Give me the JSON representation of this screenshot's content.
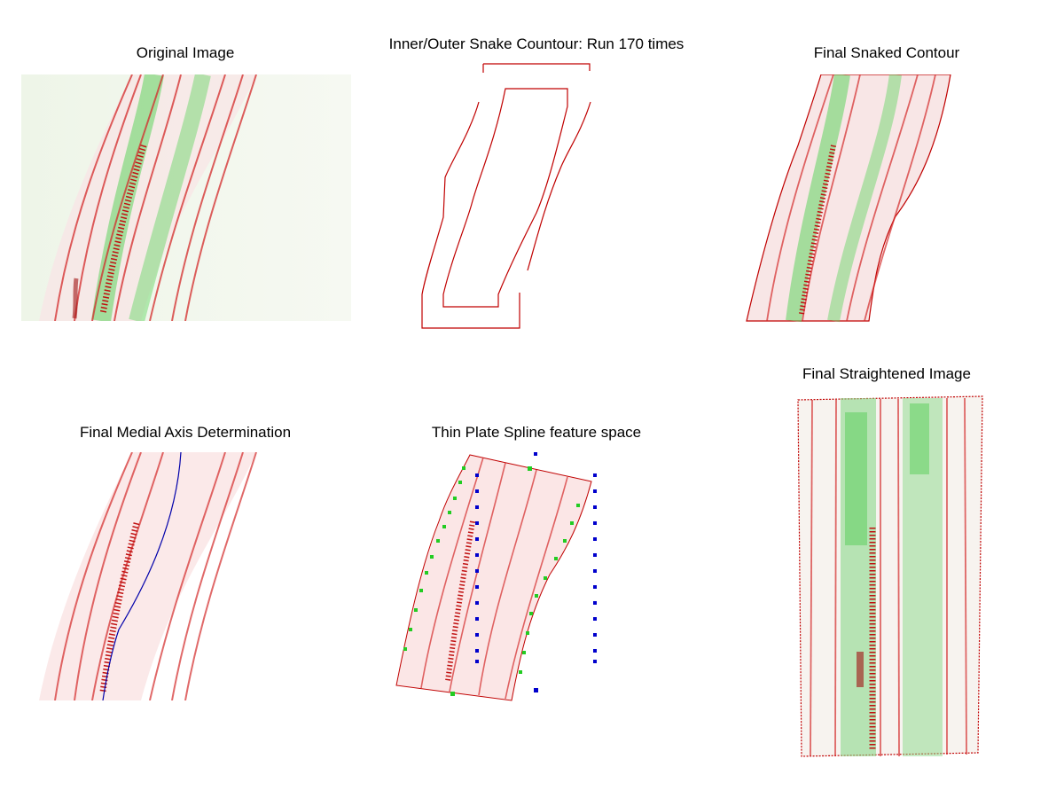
{
  "figure": {
    "panels": [
      {
        "id": "original",
        "title": "Original Image"
      },
      {
        "id": "snake",
        "title": "Inner/Outer Snake Countour: Run 170 times"
      },
      {
        "id": "snaked",
        "title": "Final Snaked Contour"
      },
      {
        "id": "medial",
        "title": "Final Medial Axis Determination"
      },
      {
        "id": "tps",
        "title": "Thin Plate Spline feature space"
      },
      {
        "id": "straight",
        "title": "Final Straightened Image"
      }
    ]
  },
  "colors": {
    "cell_wall_red": "#d42a2a",
    "fluor_green": "#3fcf3f",
    "contour": "#c00000",
    "medial_axis": "#0000aa",
    "landmark_green": "#22cc22",
    "landmark_blue": "#0000cc",
    "background_tint": "#f4f8ee"
  }
}
